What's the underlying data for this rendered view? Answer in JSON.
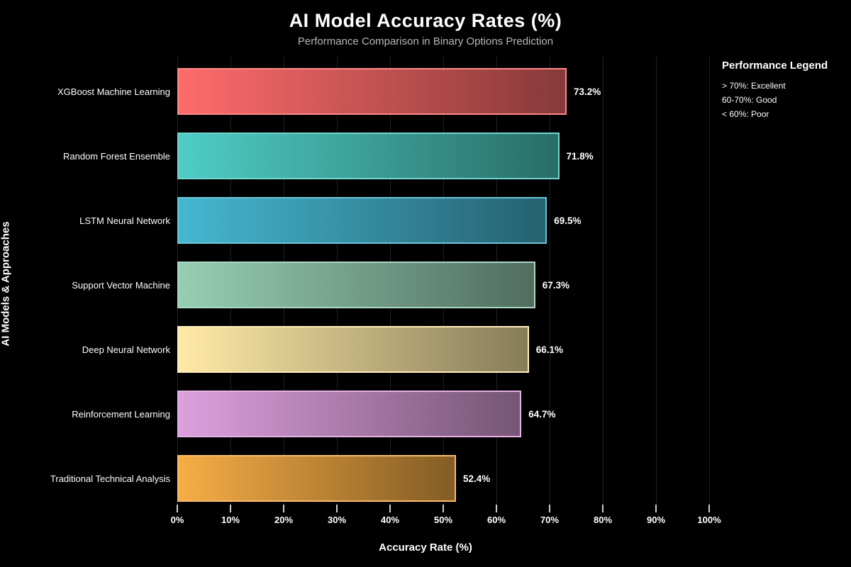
{
  "title": "AI Model Accuracy Rates (%)",
  "subtitle": "Performance Comparison in Binary Options Prediction",
  "xaxis_title": "Accuracy Rate (%)",
  "yaxis_title": "AI Models & Approaches",
  "legend": {
    "title": "Performance Legend",
    "items": [
      "> 70%: Excellent",
      "60-70%: Good",
      "< 60%: Poor"
    ],
    "position": "top-right"
  },
  "colors": {
    "background": "#000000",
    "title_text": "#ffffff",
    "subtitle_text": "#b8b8b8",
    "gridline": "rgba(255,255,255,0.13)"
  },
  "chart_data": {
    "type": "bar",
    "orientation": "horizontal",
    "title": "AI Model Accuracy Rates (%)",
    "subtitle": "Performance Comparison in Binary Options Prediction",
    "xlabel": "Accuracy Rate (%)",
    "ylabel": "AI Models & Approaches",
    "categories": [
      "XGBoost Machine Learning",
      "Random Forest Ensemble",
      "LSTM Neural Network",
      "Support Vector Machine",
      "Deep Neural Network",
      "Reinforcement Learning",
      "Traditional Technical Analysis"
    ],
    "values": [
      73.2,
      71.8,
      69.5,
      67.3,
      66.1,
      64.7,
      52.4
    ],
    "value_labels": [
      "73.2%",
      "71.8%",
      "69.5%",
      "67.3%",
      "66.1%",
      "64.7%",
      "52.4%"
    ],
    "bar_colors": [
      "#FF6B6B",
      "#4ECDC4",
      "#45B7D1",
      "#96CEB4",
      "#FFEAA7",
      "#DDA0DD",
      "#F7AD45"
    ],
    "bar_gradient": "left bright to right darkened",
    "xlim": [
      0,
      100
    ],
    "xticks": [
      "0%",
      "10%",
      "20%",
      "30%",
      "40%",
      "50%",
      "60%",
      "70%",
      "80%",
      "90%",
      "100%"
    ],
    "grid": true,
    "legend_position": "top-right"
  }
}
